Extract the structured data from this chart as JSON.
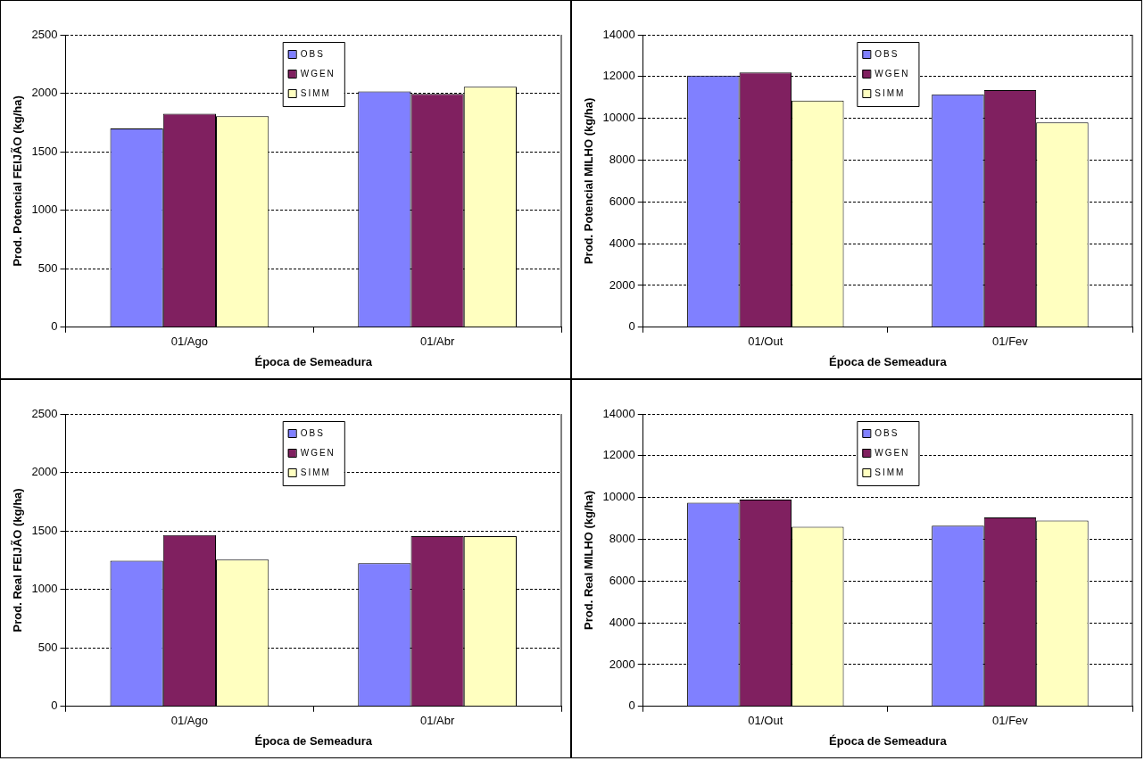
{
  "chart_data": [
    {
      "type": "bar",
      "categories": [
        "01/Ago",
        "01/Abr"
      ],
      "xlabel": "Época de Semeadura",
      "ylabel": "Prod. Potencial FEIJÃO (kg/ha)",
      "ylim": [
        0,
        2500
      ],
      "yticks": [
        0,
        500,
        1000,
        1500,
        2000,
        2500
      ],
      "grid": "y",
      "legend": "top",
      "series": [
        {
          "name": "OBS",
          "color": "#8080ff",
          "values": [
            1700,
            2015
          ]
        },
        {
          "name": "WGEN",
          "color": "#802060",
          "values": [
            1825,
            1995
          ]
        },
        {
          "name": "SIMM",
          "color": "#ffffc0",
          "values": [
            1805,
            2055
          ]
        }
      ]
    },
    {
      "type": "bar",
      "categories": [
        "01/Out",
        "01/Fev"
      ],
      "xlabel": "Época de Semeadura",
      "ylabel": "Prod. Potencial MILHO (kg/ha)",
      "ylim": [
        0,
        14000
      ],
      "yticks": [
        0,
        2000,
        4000,
        6000,
        8000,
        10000,
        12000,
        14000
      ],
      "grid": "y",
      "legend": "top",
      "series": [
        {
          "name": "OBS",
          "color": "#8080ff",
          "values": [
            12050,
            11150
          ]
        },
        {
          "name": "WGEN",
          "color": "#802060",
          "values": [
            12200,
            11350
          ]
        },
        {
          "name": "SIMM",
          "color": "#ffffc0",
          "values": [
            10850,
            9800
          ]
        }
      ]
    },
    {
      "type": "bar",
      "categories": [
        "01/Ago",
        "01/Abr"
      ],
      "xlabel": "Época de Semeadura",
      "ylabel": "Prod. Real FEIJÃO (kg/ha)",
      "ylim": [
        0,
        2500
      ],
      "yticks": [
        0,
        500,
        1000,
        1500,
        2000,
        2500
      ],
      "grid": "y",
      "legend": "top",
      "series": [
        {
          "name": "OBS",
          "color": "#8080ff",
          "values": [
            1245,
            1225
          ]
        },
        {
          "name": "WGEN",
          "color": "#802060",
          "values": [
            1465,
            1455
          ]
        },
        {
          "name": "SIMM",
          "color": "#ffffc0",
          "values": [
            1255,
            1455
          ]
        }
      ]
    },
    {
      "type": "bar",
      "categories": [
        "01/Out",
        "01/Fev"
      ],
      "xlabel": "Época de Semeadura",
      "ylabel": "Prod. Real MILHO (kg/ha)",
      "ylim": [
        0,
        14000
      ],
      "yticks": [
        0,
        2000,
        4000,
        6000,
        8000,
        10000,
        12000,
        14000
      ],
      "grid": "y",
      "legend": "top",
      "series": [
        {
          "name": "OBS",
          "color": "#8080ff",
          "values": [
            9750,
            8650
          ]
        },
        {
          "name": "WGEN",
          "color": "#802060",
          "values": [
            9900,
            9050
          ]
        },
        {
          "name": "SIMM",
          "color": "#ffffc0",
          "values": [
            8600,
            8900
          ]
        }
      ]
    }
  ]
}
